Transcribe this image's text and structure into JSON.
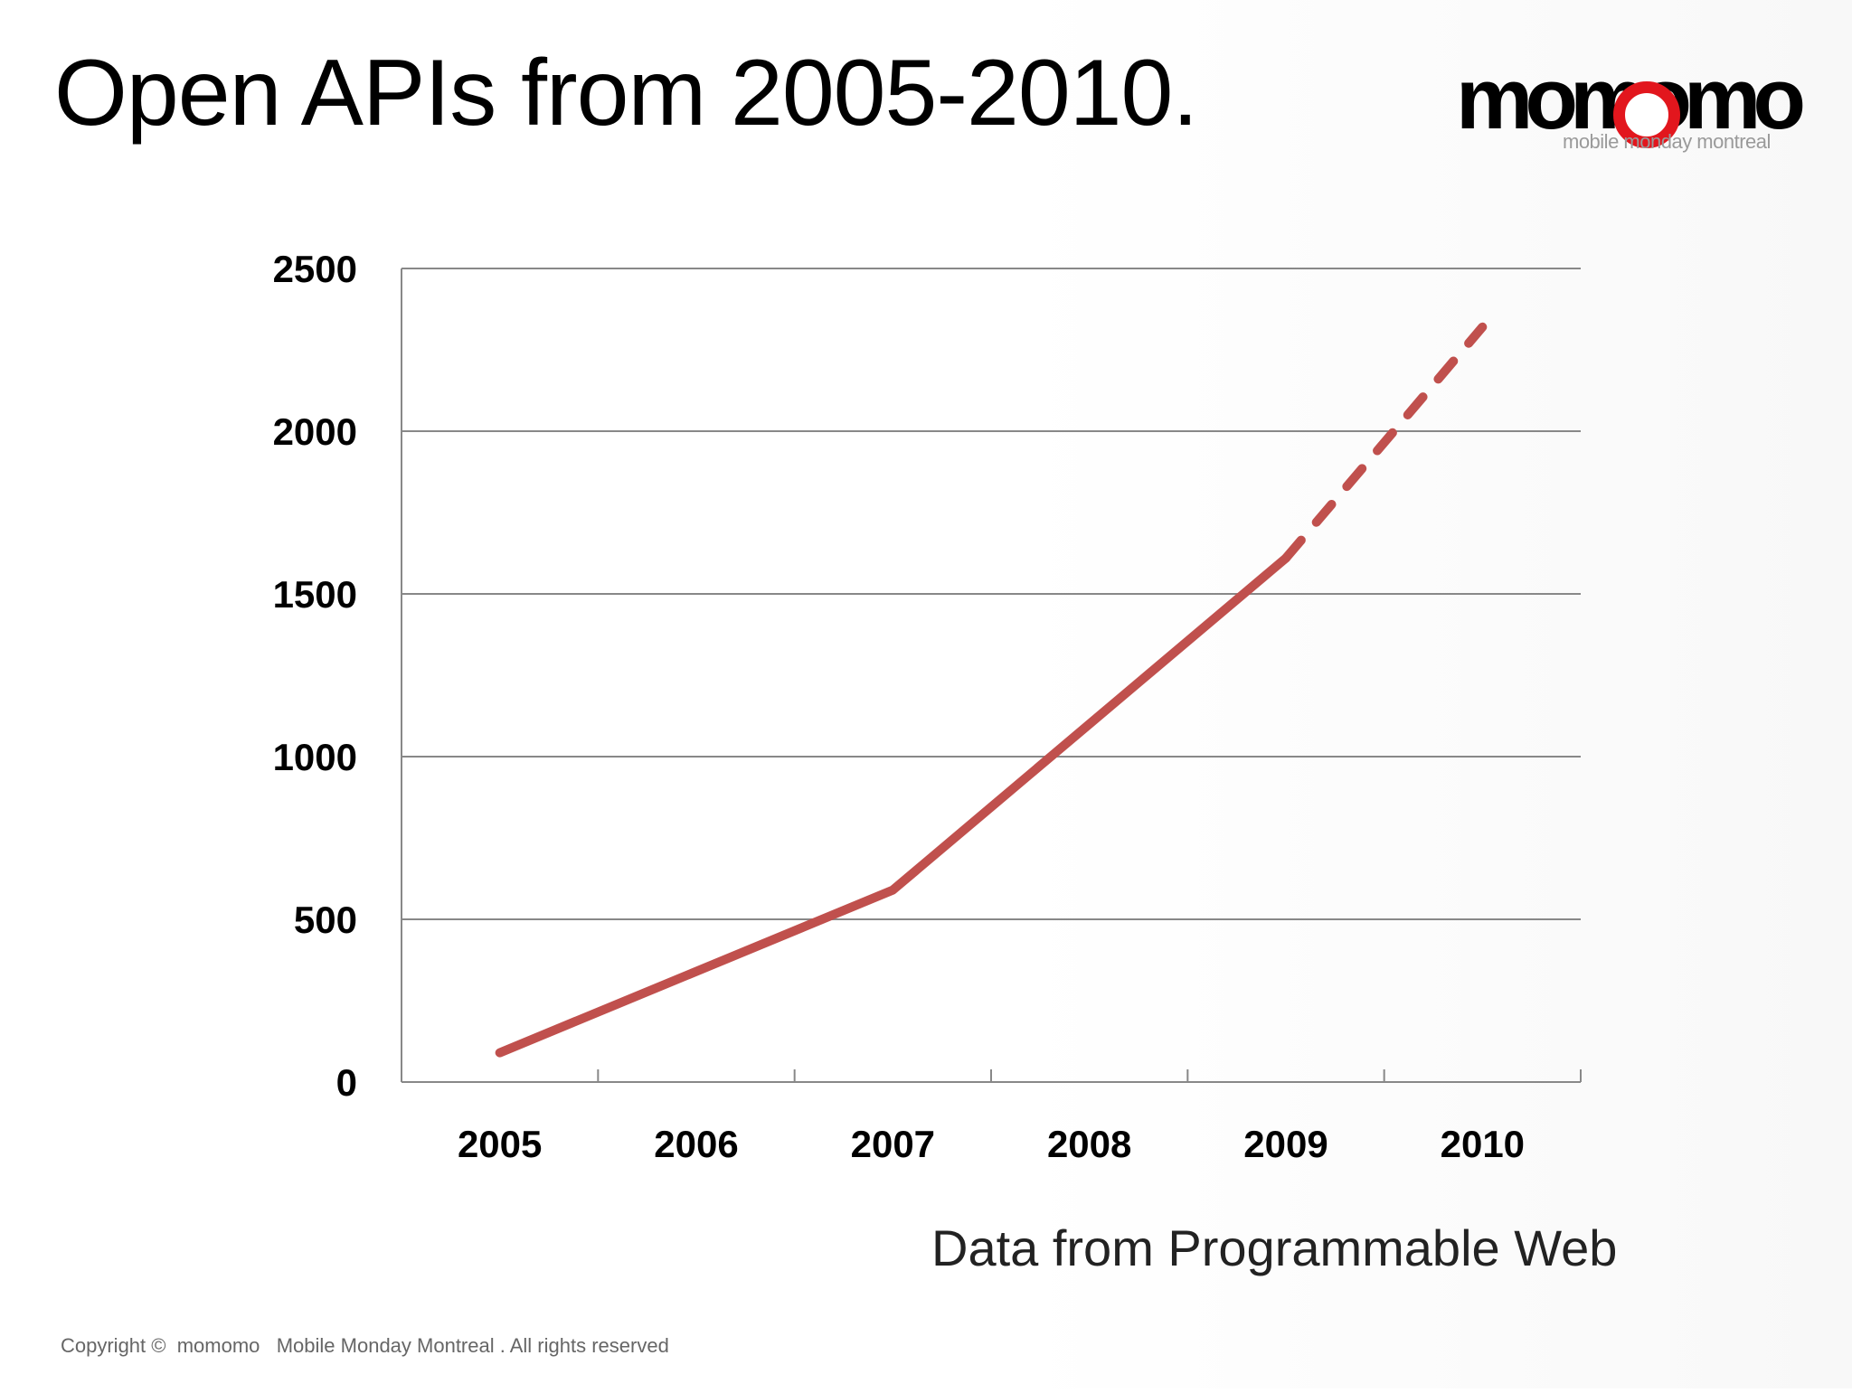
{
  "slide": {
    "title": "Open APIs from 2005-2010.",
    "logo_text": "momomo",
    "logo_tagline": "mobile monday montreal",
    "source_note": "Data from Programmable Web",
    "copyright": "Copyright ©  momomo   Mobile Monday Montreal . All rights reserved"
  },
  "colors": {
    "series_line": "#c0504d",
    "grid": "#888888",
    "logo_accent": "#e2161d"
  },
  "chart_data": {
    "type": "line",
    "title": "",
    "xlabel": "",
    "ylabel": "",
    "categories": [
      "2005",
      "2006",
      "2007",
      "2008",
      "2009",
      "2010"
    ],
    "ylim": [
      0,
      2500
    ],
    "yticks": [
      0,
      500,
      1000,
      1500,
      2000,
      2500
    ],
    "grid": true,
    "legend": "none",
    "series": [
      {
        "values": [
          90,
          340,
          590,
          1100,
          1610,
          2320
        ],
        "solid_through_index": 4,
        "projected_from_index": 4
      }
    ]
  }
}
